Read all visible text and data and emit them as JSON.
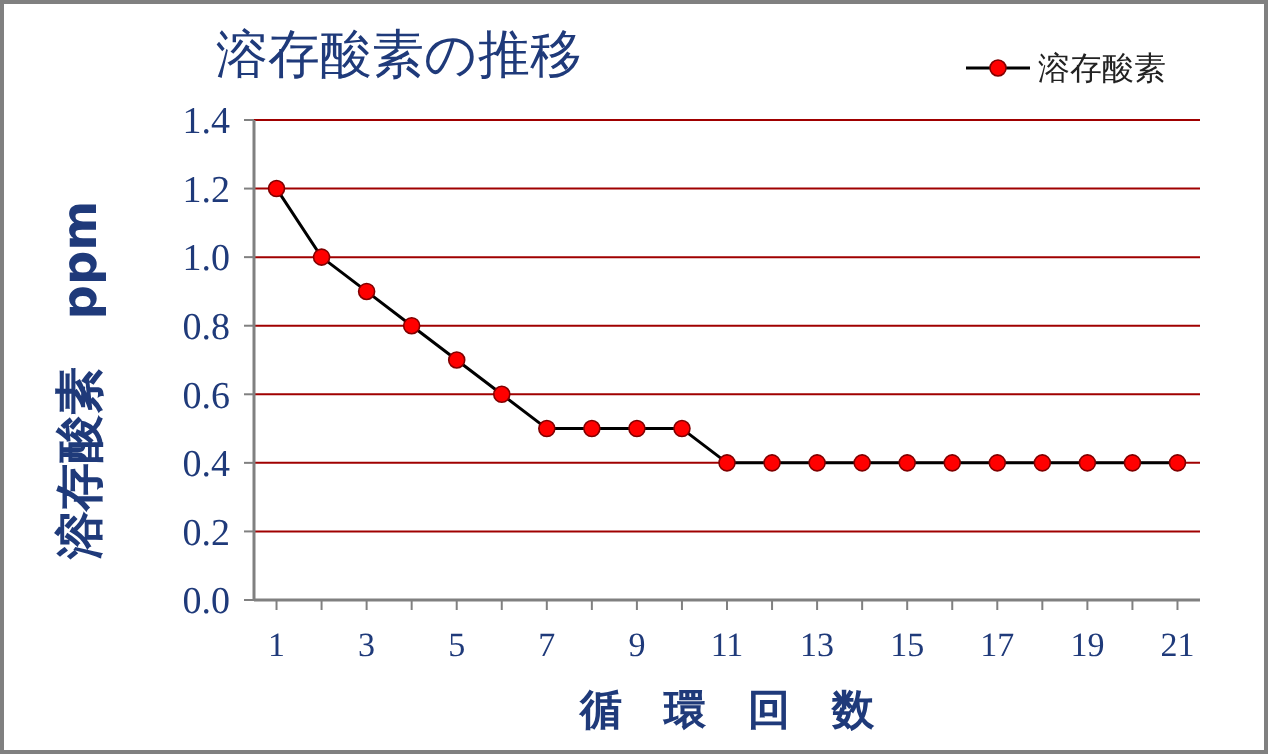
{
  "chart_data": {
    "type": "line",
    "title": "溶存酸素の推移",
    "xlabel": "循　環　回　数",
    "ylabel": "溶存酸素　ppm",
    "x": [
      1,
      2,
      3,
      4,
      5,
      6,
      7,
      8,
      9,
      10,
      11,
      12,
      13,
      14,
      15,
      16,
      17,
      18,
      19,
      20,
      21
    ],
    "series": [
      {
        "name": "溶存酸素",
        "color": "#000000",
        "values": [
          1.2,
          1.0,
          0.9,
          0.8,
          0.7,
          0.6,
          0.5,
          0.5,
          0.5,
          0.5,
          0.4,
          0.4,
          0.4,
          0.4,
          0.4,
          0.4,
          0.4,
          0.4,
          0.4,
          0.4,
          0.4
        ]
      }
    ],
    "xlim": [
      0.5,
      21.5
    ],
    "xticks": [
      1,
      {
        "value": 2,
        "label": null
      },
      3,
      {
        "value": 4,
        "label": null
      },
      5,
      {
        "value": 6,
        "label": null
      },
      7,
      {
        "value": 8,
        "label": null
      },
      9,
      {
        "value": 10,
        "label": null
      },
      11,
      {
        "value": 12,
        "label": null
      },
      13,
      {
        "value": 14,
        "label": null
      },
      15,
      {
        "value": 16,
        "label": null
      },
      17,
      {
        "value": 18,
        "label": null
      },
      19,
      {
        "value": 20,
        "label": null
      },
      21
    ],
    "ylim": [
      0,
      1.4
    ],
    "yticks": [
      {
        "value": 0,
        "label": "0.0"
      },
      {
        "value": 0.2,
        "label": "0.2"
      },
      {
        "value": 0.4,
        "label": "0.4"
      },
      {
        "value": 0.6,
        "label": "0.6"
      },
      {
        "value": 0.8,
        "label": "0.8"
      },
      {
        "value": 1,
        "label": "1.0"
      },
      {
        "value": 1.2,
        "label": "1.2"
      },
      {
        "value": 1.4,
        "label": "1.4"
      }
    ],
    "grid": "y",
    "legend": "top right",
    "marker": "circle",
    "line_style": "solid"
  }
}
